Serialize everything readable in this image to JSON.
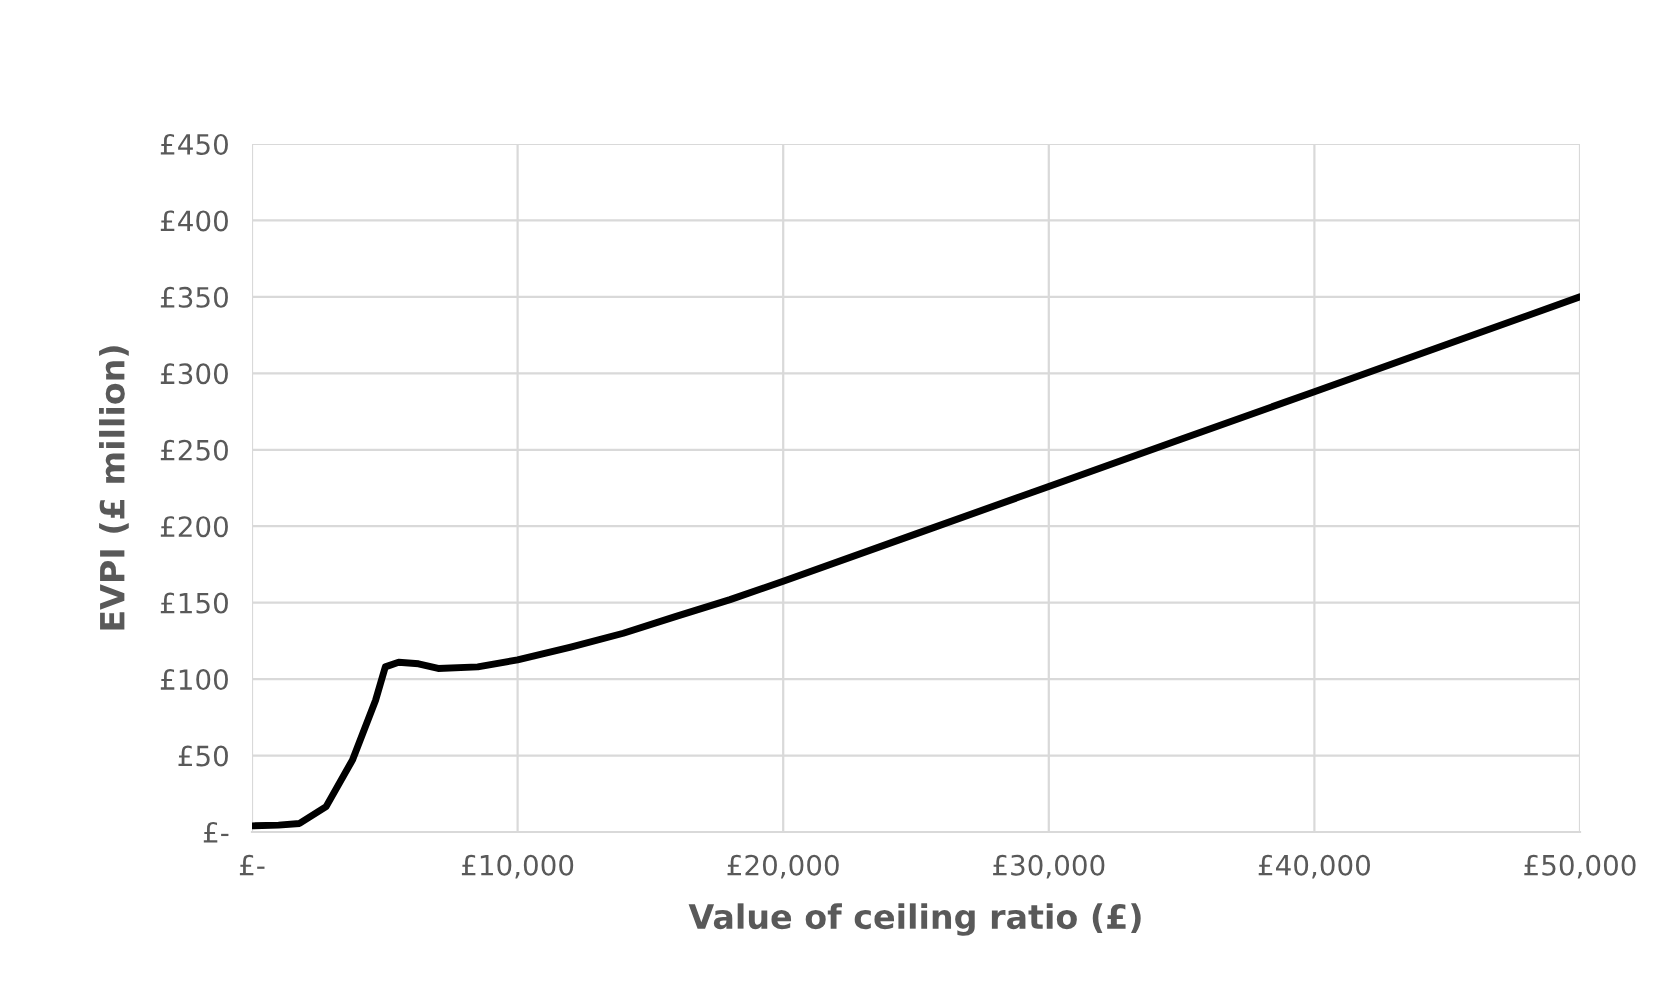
{
  "chart_data": {
    "type": "line",
    "xlabel": "Value of ceiling ratio (£)",
    "ylabel": "EVPI (£ million)",
    "series": [
      {
        "color": "#000000",
        "x": [
          0,
          1000,
          1790,
          2790,
          3780,
          4650,
          5020,
          5520,
          6270,
          7010,
          8500,
          10000,
          12000,
          13980,
          15970,
          18000,
          20000,
          25000,
          30000,
          35000,
          40000,
          45000,
          50000
        ],
        "values": [
          4,
          4.5,
          5.6,
          16.6,
          47,
          86,
          108,
          111,
          110,
          107,
          108,
          112.6,
          121,
          130,
          141,
          152,
          164,
          195,
          226,
          257,
          288,
          319,
          350
        ]
      }
    ],
    "xlim": [
      0,
      50000
    ],
    "ylim": [
      0,
      450
    ],
    "xticks": [
      {
        "value": 0,
        "label": "£-"
      },
      {
        "value": 10000,
        "label": "£10,000"
      },
      {
        "value": 20000,
        "label": "£20,000"
      },
      {
        "value": 30000,
        "label": "£30,000"
      },
      {
        "value": 40000,
        "label": "£40,000"
      },
      {
        "value": 50000,
        "label": "£50,000"
      }
    ],
    "yticks": [
      {
        "value": 0,
        "label": "£-"
      },
      {
        "value": 50,
        "label": "£50"
      },
      {
        "value": 100,
        "label": "£100"
      },
      {
        "value": 150,
        "label": "£150"
      },
      {
        "value": 200,
        "label": "£200"
      },
      {
        "value": 250,
        "label": "£250"
      },
      {
        "value": 300,
        "label": "£300"
      },
      {
        "value": 350,
        "label": "£350"
      },
      {
        "value": 400,
        "label": "£400"
      },
      {
        "value": 450,
        "label": "£450"
      }
    ],
    "grid": true,
    "legend": false,
    "marker": "none",
    "line_style": "solid"
  }
}
